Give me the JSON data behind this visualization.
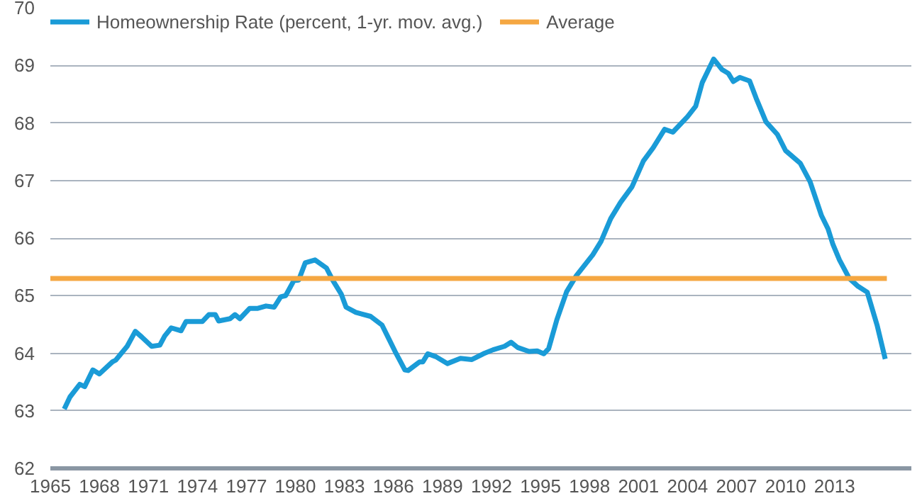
{
  "chart_data": {
    "type": "line",
    "xlim": [
      1965,
      2017.7
    ],
    "ylim": [
      62,
      70
    ],
    "xticks": [
      1965,
      1968,
      1971,
      1974,
      1977,
      1980,
      1983,
      1986,
      1989,
      1992,
      1995,
      1998,
      2001,
      2004,
      2007,
      2010,
      2013
    ],
    "yticks": [
      62,
      63,
      64,
      65,
      66,
      67,
      68,
      69,
      70
    ],
    "grid": "y",
    "legend": "top left",
    "marker": "none",
    "line_style": "solid",
    "series": [
      {
        "name": "Homeownership Rate (percent, 1-yr. mov. avg.)",
        "color": "#1a9bd7",
        "x": [
          1965.85,
          1966.2,
          1966.8,
          1967.1,
          1967.6,
          1968.0,
          1968.8,
          1969.0,
          1969.7,
          1970.2,
          1970.6,
          1971.2,
          1971.7,
          1972.0,
          1972.4,
          1973.0,
          1973.3,
          1974.3,
          1974.7,
          1975.1,
          1975.3,
          1976.0,
          1976.3,
          1976.6,
          1977.2,
          1977.7,
          1978.2,
          1978.7,
          1979.1,
          1979.4,
          1979.9,
          1980.2,
          1980.6,
          1981.2,
          1981.9,
          1982.3,
          1982.8,
          1983.1,
          1983.7,
          1984.6,
          1985.3,
          1985.7,
          1986.1,
          1986.7,
          1986.9,
          1987.6,
          1987.8,
          1988.1,
          1988.6,
          1989.3,
          1990.1,
          1990.8,
          1991.5,
          1992.1,
          1992.8,
          1993.2,
          1993.6,
          1994.3,
          1994.8,
          1995.2,
          1995.5,
          1996.0,
          1996.6,
          1997.2,
          1998.2,
          1998.7,
          1999.3,
          1999.9,
          2000.6,
          2001.3,
          2001.9,
          2002.6,
          2003.1,
          2004.0,
          2004.5,
          2004.9,
          2005.6,
          2006.1,
          2006.5,
          2006.8,
          2007.2,
          2007.8,
          2008.2,
          2008.8,
          2009.5,
          2010.0,
          2010.9,
          2011.5,
          2012.2,
          2012.6,
          2012.9,
          2013.3,
          2013.9,
          2014.4,
          2015.0,
          2015.6,
          2016.1
        ],
        "values": [
          63.03,
          63.24,
          63.46,
          63.42,
          63.71,
          63.64,
          63.85,
          63.88,
          64.12,
          64.38,
          64.28,
          64.12,
          64.14,
          64.3,
          64.44,
          64.39,
          64.55,
          64.55,
          64.67,
          64.67,
          64.56,
          64.6,
          64.67,
          64.6,
          64.78,
          64.78,
          64.82,
          64.8,
          64.98,
          65.0,
          65.26,
          65.27,
          65.57,
          65.62,
          65.48,
          65.26,
          65.03,
          64.8,
          64.71,
          64.64,
          64.49,
          64.26,
          64.03,
          63.71,
          63.7,
          63.85,
          63.85,
          63.99,
          63.94,
          63.82,
          63.91,
          63.89,
          63.99,
          64.06,
          64.12,
          64.19,
          64.1,
          64.03,
          64.04,
          63.99,
          64.08,
          64.58,
          65.07,
          65.35,
          65.71,
          65.94,
          66.34,
          66.62,
          66.89,
          67.34,
          67.57,
          67.89,
          67.84,
          68.11,
          68.29,
          68.7,
          69.11,
          68.93,
          68.86,
          68.72,
          68.79,
          68.73,
          68.43,
          68.02,
          67.8,
          67.52,
          67.3,
          66.98,
          66.39,
          66.16,
          65.89,
          65.62,
          65.3,
          65.17,
          65.06,
          64.49,
          63.9
        ]
      },
      {
        "name": "Average",
        "color": "#f5a742",
        "x": [
          1965,
          2016.2
        ],
        "values": [
          65.3,
          65.3
        ]
      }
    ]
  }
}
